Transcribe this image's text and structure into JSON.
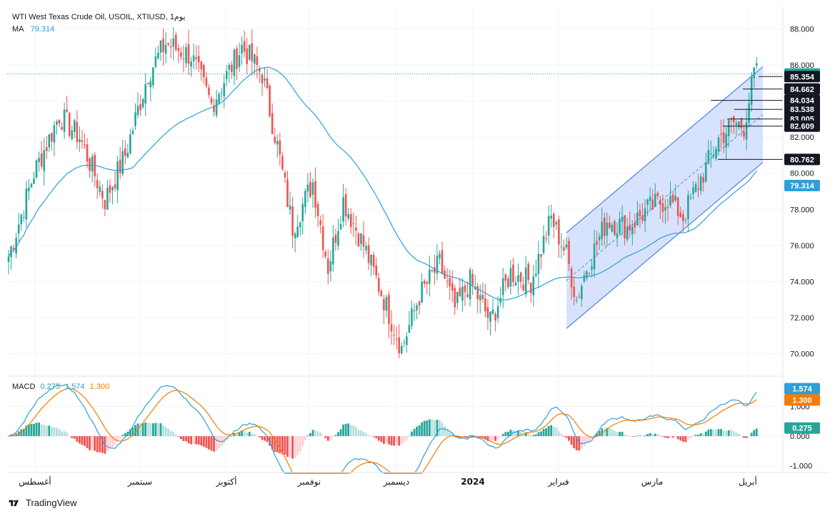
{
  "legend": {
    "title": "WTI West Texas Crude Oil, USOIL, XTIUSD, 1يوم",
    "ma_label": "MA",
    "ma_value": "79.314",
    "macd_label": "MACD",
    "macd_value": "0.275",
    "signal_value": "1.574",
    "hist_value": "1.300"
  },
  "footer": {
    "brand": "TradingView"
  },
  "colors": {
    "up": "#26a69a",
    "down": "#ef5350",
    "ma": "#2f9fd7",
    "signal": "#f57c00",
    "hist_up_strong": "#26a69a",
    "hist_up_weak": "#b2dfdb",
    "hist_down_strong": "#ef5350",
    "hist_down_weak": "#ffcdd2",
    "channel_fill": "#c9d9fb",
    "channel_line": "#5b86e5"
  },
  "chart_data": [
    {
      "type": "candlestick",
      "name": "price",
      "ylim": [
        68.8,
        89.2
      ],
      "y_ticks": [
        "88.000",
        "86.000",
        "84.000",
        "82.000",
        "80.000",
        "78.000",
        "76.000",
        "74.000",
        "72.000",
        "70.000"
      ],
      "x_ticks": [
        "أغسطس",
        "سبتمبر",
        "أكتوبر",
        "نوفمبر",
        "ديسمبر",
        "2024",
        "فبراير",
        "مارس",
        "أبريل"
      ],
      "current_price": "85.500",
      "ma_last": "79.314",
      "level_labels": [
        "85.354",
        "84.662",
        "84.034",
        "83.538",
        "83.005",
        "82.609",
        "80.762"
      ],
      "close_anchors": [
        [
          0,
          75.4
        ],
        [
          10,
          80.0
        ],
        [
          20,
          83.2
        ],
        [
          28,
          82.0
        ],
        [
          38,
          78.5
        ],
        [
          46,
          81.0
        ],
        [
          55,
          85.5
        ],
        [
          62,
          87.2
        ],
        [
          72,
          86.5
        ],
        [
          80,
          83.8
        ],
        [
          92,
          87.0
        ],
        [
          100,
          85.5
        ],
        [
          106,
          81.5
        ],
        [
          112,
          77.0
        ],
        [
          120,
          79.5
        ],
        [
          126,
          74.8
        ],
        [
          132,
          78.5
        ],
        [
          140,
          76.0
        ],
        [
          148,
          73.0
        ],
        [
          155,
          70.3
        ],
        [
          162,
          73.2
        ],
        [
          170,
          75.0
        ],
        [
          176,
          72.5
        ],
        [
          182,
          74.0
        ],
        [
          190,
          71.8
        ],
        [
          198,
          74.5
        ],
        [
          206,
          74.0
        ],
        [
          214,
          77.5
        ],
        [
          220,
          75.5
        ],
        [
          224,
          73.0
        ],
        [
          228,
          74.8
        ],
        [
          236,
          77.4
        ],
        [
          244,
          77.0
        ],
        [
          252,
          78.0
        ],
        [
          260,
          78.6
        ],
        [
          266,
          77.6
        ],
        [
          274,
          80.0
        ],
        [
          280,
          81.9
        ],
        [
          286,
          82.8
        ],
        [
          290,
          82.6
        ],
        [
          294,
          85.5
        ]
      ],
      "channel": {
        "upper": [
          "2024-02-05",
          76.7,
          "2024-04-05",
          85.9
        ],
        "lower": [
          "2024-02-05",
          71.4,
          "2024-04-05",
          80.6
        ]
      }
    },
    {
      "type": "macd",
      "name": "MACD (12, 26, 9)",
      "ylim": [
        -1.2,
        2.0
      ],
      "y_ticks": [
        "1.000",
        "0.000",
        "-1.000"
      ],
      "macd_last": "0.275",
      "signal_last": "1.574",
      "hist_last": "1.300"
    }
  ]
}
